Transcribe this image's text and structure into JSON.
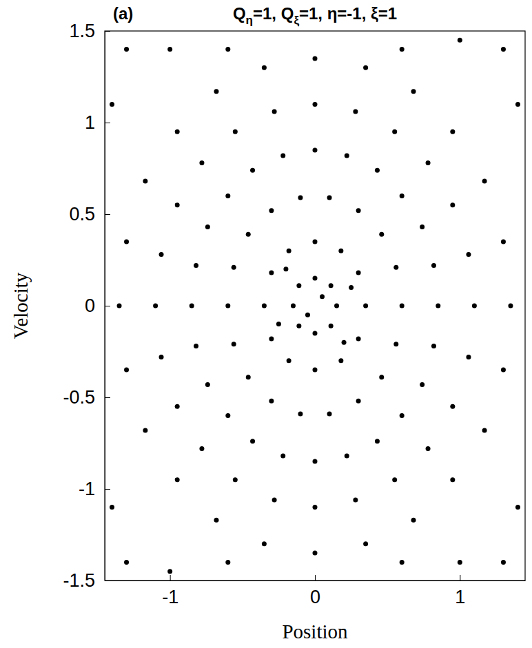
{
  "chart_data": {
    "type": "scatter",
    "panel_label": "(a)",
    "title": "Qη=1, Qξ=1, η=-1, ξ=1",
    "x_label": "Position",
    "y_label": "Velocity",
    "color": "#000000",
    "marker": "circle",
    "xlim": [
      -1.45,
      1.45
    ],
    "ylim": [
      -1.5,
      1.5
    ],
    "xticks": [
      -1,
      0,
      1
    ],
    "yticks": [
      -1.5,
      -1,
      -0.5,
      0,
      0.5,
      1,
      1.5
    ],
    "x": [
      0.15,
      0.11,
      0,
      -0.11,
      -0.15,
      -0.11,
      0,
      0.11,
      0.35,
      0.3,
      0.18,
      0,
      -0.18,
      -0.3,
      -0.35,
      -0.3,
      -0.18,
      0,
      0.18,
      0.3,
      0.6,
      0.56,
      0.46,
      0.3,
      0.1,
      -0.1,
      -0.3,
      -0.46,
      -0.56,
      -0.6,
      -0.56,
      -0.46,
      -0.3,
      -0.1,
      0.1,
      0.3,
      0.46,
      0.56,
      0.85,
      0.82,
      0.74,
      0.6,
      0.43,
      0.22,
      0,
      -0.22,
      -0.43,
      -0.6,
      -0.74,
      -0.82,
      -0.85,
      -0.82,
      -0.74,
      -0.6,
      -0.43,
      -0.22,
      0,
      0.22,
      0.43,
      0.6,
      0.74,
      0.82,
      1.1,
      1.06,
      0.95,
      0.78,
      0.55,
      0.28,
      0,
      -0.28,
      -0.55,
      -0.78,
      -0.95,
      -1.06,
      -1.1,
      -1.06,
      -0.95,
      -0.78,
      -0.55,
      -0.28,
      0,
      0.28,
      0.55,
      0.78,
      0.95,
      1.06,
      1.35,
      1.3,
      1.17,
      0.95,
      0.68,
      0.35,
      0,
      -0.35,
      -0.68,
      -0.95,
      -1.17,
      -1.3,
      -1.35,
      -1.3,
      -1.17,
      -0.95,
      -0.68,
      -0.35,
      0,
      0.35,
      0.68,
      0.95,
      1.17,
      1.3,
      -1.3,
      -1.0,
      1.3,
      1.0,
      -1.3,
      -1.0,
      1.3,
      1.0,
      -1.4,
      1.4,
      -1.4,
      1.4,
      0.6,
      -0.6,
      0.6,
      -0.6,
      0.05,
      -0.05,
      0.25,
      -0.25,
      0.2,
      -0.2
    ],
    "values": [
      0,
      0.11,
      0.15,
      0.11,
      0,
      -0.11,
      -0.15,
      -0.11,
      0,
      0.18,
      0.3,
      0.35,
      0.3,
      0.18,
      0,
      -0.18,
      -0.3,
      -0.35,
      -0.3,
      -0.18,
      0,
      0.21,
      0.39,
      0.52,
      0.59,
      0.59,
      0.52,
      0.39,
      0.21,
      0,
      -0.21,
      -0.39,
      -0.52,
      -0.59,
      -0.59,
      -0.52,
      -0.39,
      -0.21,
      0,
      0.22,
      0.43,
      0.6,
      0.74,
      0.82,
      0.85,
      0.82,
      0.74,
      0.6,
      0.43,
      0.22,
      0,
      -0.22,
      -0.43,
      -0.6,
      -0.74,
      -0.82,
      -0.85,
      -0.82,
      -0.74,
      -0.6,
      -0.43,
      -0.22,
      0,
      0.28,
      0.55,
      0.78,
      0.95,
      1.06,
      1.1,
      1.06,
      0.95,
      0.78,
      0.55,
      0.28,
      0,
      -0.28,
      -0.55,
      -0.78,
      -0.95,
      -1.06,
      -1.1,
      -1.06,
      -0.95,
      -0.78,
      -0.55,
      -0.28,
      0,
      0.35,
      0.68,
      0.95,
      1.17,
      1.3,
      1.35,
      1.3,
      1.17,
      0.95,
      0.68,
      0.35,
      0,
      -0.35,
      -0.68,
      -0.95,
      -1.17,
      -1.3,
      -1.35,
      -1.3,
      -1.17,
      -0.95,
      -0.68,
      -0.35,
      1.4,
      1.4,
      1.4,
      1.45,
      -1.4,
      -1.45,
      -1.4,
      -1.4,
      1.1,
      1.1,
      -1.1,
      -1.1,
      1.4,
      1.4,
      -1.4,
      -1.4,
      0.05,
      -0.05,
      0.1,
      -0.1,
      -0.2,
      0.2
    ]
  }
}
